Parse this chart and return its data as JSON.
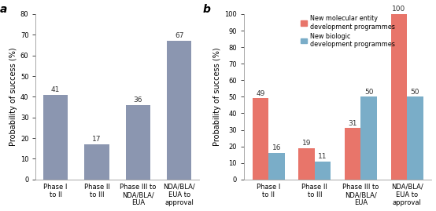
{
  "panel_a": {
    "categories": [
      "Phase I\nto II",
      "Phase II\nto III",
      "Phase III to\nNDA/BLA/\nEUA",
      "NDA/BLA/\nEUA to\napproval"
    ],
    "values": [
      41,
      17,
      36,
      67
    ],
    "bar_color": "#8b96b0",
    "ylabel": "Probability of success (%)",
    "ylim": [
      0,
      80
    ],
    "yticks": [
      0,
      10,
      20,
      30,
      40,
      50,
      60,
      70,
      80
    ],
    "label": "a"
  },
  "panel_b": {
    "categories": [
      "Phase I\nto II",
      "Phase II\nto III",
      "Phase III to\nNDA/BLA/\nEUA",
      "NDA/BLA/\nEUA to\napproval"
    ],
    "values_red": [
      49,
      19,
      31,
      100
    ],
    "values_blue": [
      16,
      11,
      50,
      50
    ],
    "color_red": "#e8756a",
    "color_blue": "#7aadc8",
    "ylabel": "Probability of success (%)",
    "ylim": [
      0,
      100
    ],
    "yticks": [
      0,
      10,
      20,
      30,
      40,
      50,
      60,
      70,
      80,
      90,
      100
    ],
    "label": "b",
    "legend_red": "New molecular entity\ndevelopment programmes",
    "legend_blue": "New biologic\ndevelopment programmes"
  },
  "tick_fontsize": 6,
  "bar_label_fontsize": 6.5,
  "ylabel_fontsize": 7,
  "panel_label_fontsize": 10,
  "background_color": "#ffffff"
}
